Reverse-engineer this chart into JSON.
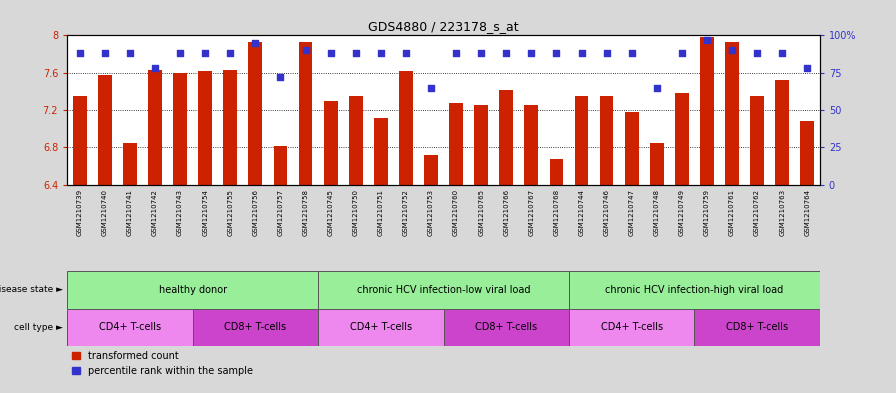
{
  "title": "GDS4880 / 223178_s_at",
  "samples": [
    "GSM1210739",
    "GSM1210740",
    "GSM1210741",
    "GSM1210742",
    "GSM1210743",
    "GSM1210754",
    "GSM1210755",
    "GSM1210756",
    "GSM1210757",
    "GSM1210758",
    "GSM1210745",
    "GSM1210750",
    "GSM1210751",
    "GSM1210752",
    "GSM1210753",
    "GSM1210760",
    "GSM1210765",
    "GSM1210766",
    "GSM1210767",
    "GSM1210768",
    "GSM1210744",
    "GSM1210746",
    "GSM1210747",
    "GSM1210748",
    "GSM1210749",
    "GSM1210759",
    "GSM1210761",
    "GSM1210762",
    "GSM1210763",
    "GSM1210764"
  ],
  "bar_values": [
    7.35,
    7.58,
    6.85,
    7.63,
    7.6,
    7.62,
    7.63,
    7.93,
    6.82,
    7.93,
    7.3,
    7.35,
    7.12,
    7.62,
    6.72,
    7.28,
    7.25,
    7.42,
    7.25,
    6.68,
    7.35,
    7.35,
    7.18,
    6.85,
    7.38,
    7.98,
    7.93,
    7.35,
    7.52,
    7.08
  ],
  "percentile_values": [
    88,
    88,
    88,
    78,
    88,
    88,
    88,
    95,
    72,
    90,
    88,
    88,
    88,
    88,
    65,
    88,
    88,
    88,
    88,
    88,
    88,
    88,
    88,
    65,
    88,
    97,
    90,
    88,
    88,
    78
  ],
  "ylim_left": [
    6.4,
    8.0
  ],
  "ylim_right": [
    0,
    100
  ],
  "yticks_left": [
    6.4,
    6.8,
    7.2,
    7.6,
    8.0
  ],
  "ytick_labels_left": [
    "6.4",
    "6.8",
    "7.2",
    "7.6",
    "8"
  ],
  "yticks_right": [
    0,
    25,
    50,
    75,
    100
  ],
  "ytick_labels_right": [
    "0",
    "25",
    "50",
    "75",
    "100%"
  ],
  "bar_color": "#cc2200",
  "percentile_color": "#3333cc",
  "fig_bg": "#d8d8d8",
  "plot_bg": "#ffffff",
  "xtick_area_bg": "#d0d0d0",
  "disease_state_groups": [
    {
      "label": "healthy donor",
      "start": 0,
      "end": 10
    },
    {
      "label": "chronic HCV infection-low viral load",
      "start": 10,
      "end": 20
    },
    {
      "label": "chronic HCV infection-high viral load",
      "start": 20,
      "end": 30
    }
  ],
  "ds_color": "#99ee99",
  "cell_types": [
    {
      "label": "CD4+ T-cells",
      "start": 0,
      "end": 5
    },
    {
      "label": "CD8+ T-cells",
      "start": 5,
      "end": 10
    },
    {
      "label": "CD4+ T-cells",
      "start": 10,
      "end": 15
    },
    {
      "label": "CD8+ T-cells",
      "start": 15,
      "end": 20
    },
    {
      "label": "CD4+ T-cells",
      "start": 20,
      "end": 25
    },
    {
      "label": "CD8+ T-cells",
      "start": 25,
      "end": 30
    }
  ],
  "ct_color_cd4": "#ee88ee",
  "ct_color_cd8": "#cc44cc",
  "legend_items": [
    {
      "label": "transformed count",
      "color": "#cc2200"
    },
    {
      "label": "percentile rank within the sample",
      "color": "#3333cc"
    }
  ],
  "grid_yticks": [
    6.8,
    7.2,
    7.6
  ]
}
